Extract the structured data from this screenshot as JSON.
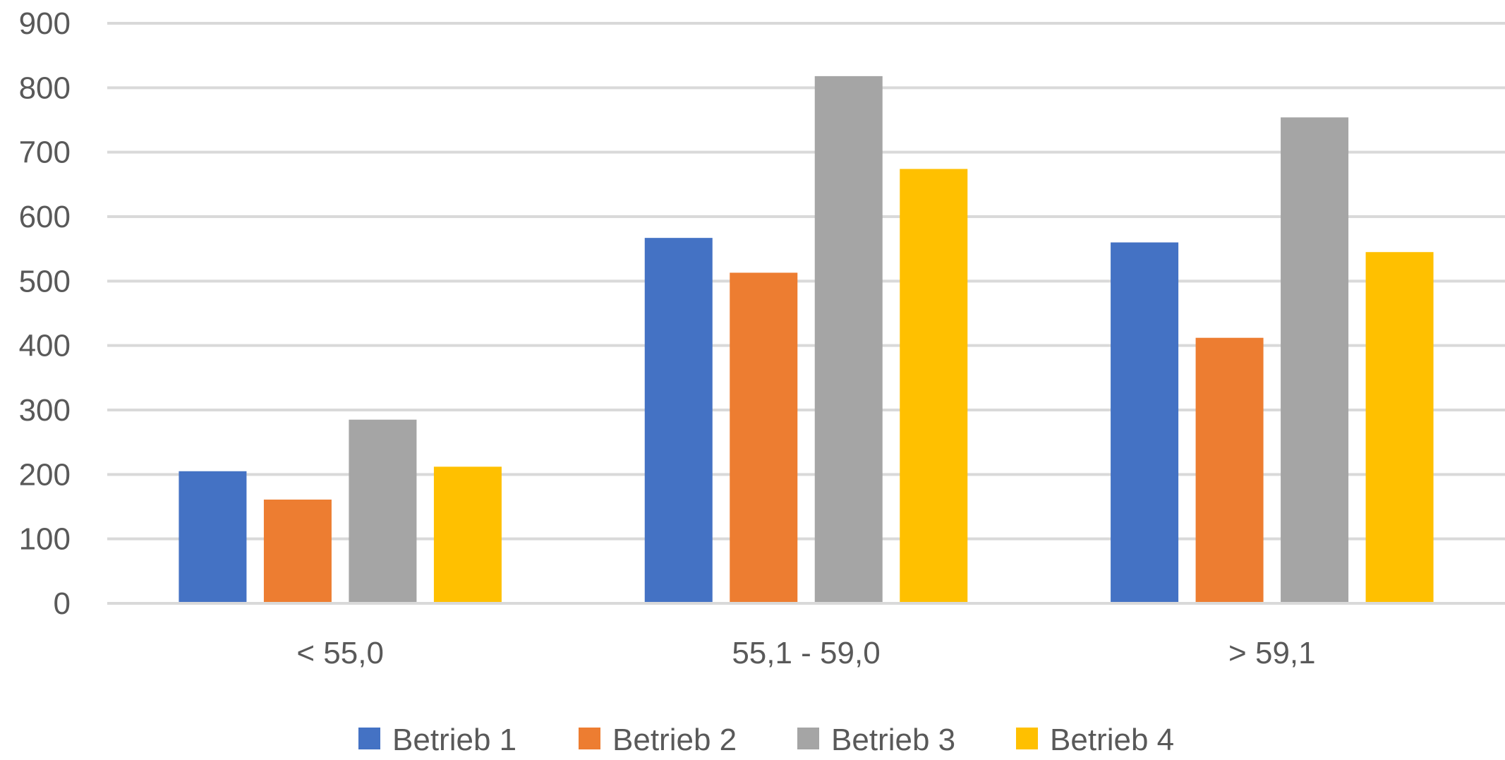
{
  "chart_data": {
    "type": "bar",
    "categories": [
      "< 55,0",
      "55,1 - 59,0",
      "> 59,1"
    ],
    "series": [
      {
        "name": "Betrieb 1",
        "values": [
          205,
          567,
          560
        ]
      },
      {
        "name": "Betrieb 2",
        "values": [
          161,
          513,
          412
        ]
      },
      {
        "name": "Betrieb 3",
        "values": [
          285,
          818,
          754
        ]
      },
      {
        "name": "Betrieb 4",
        "values": [
          212,
          674,
          545
        ]
      }
    ],
    "y_ticks": [
      "0",
      "100",
      "200",
      "300",
      "400",
      "500",
      "600",
      "700",
      "800",
      "900"
    ],
    "ylim": [
      0,
      900
    ],
    "grid": true,
    "legend_position": "bottom",
    "colors": [
      "#4472C4",
      "#ED7D31",
      "#A5A5A5",
      "#FFC000"
    ],
    "title": "",
    "xlabel": "",
    "ylabel": ""
  }
}
